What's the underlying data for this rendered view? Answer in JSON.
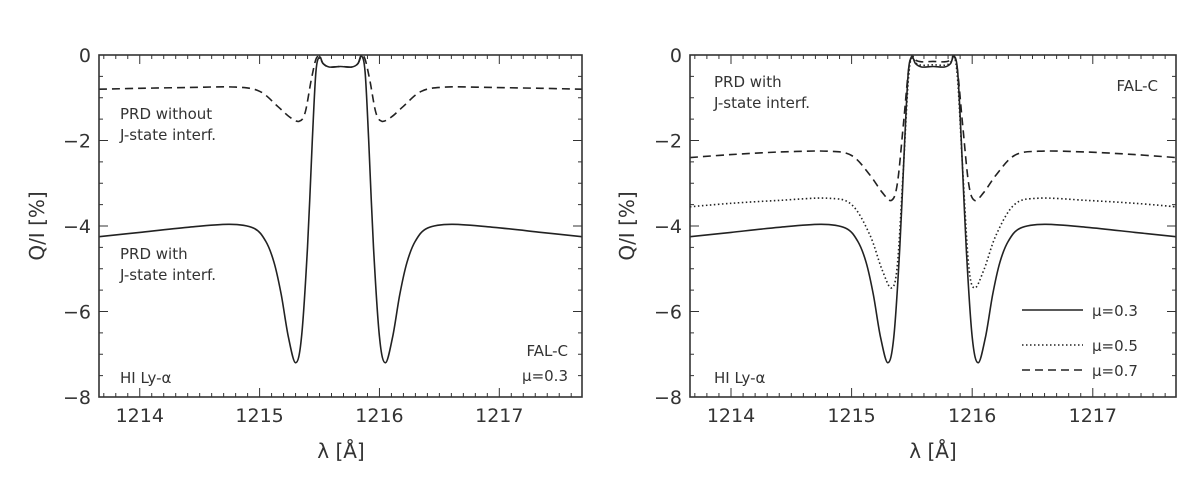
{
  "chart_data": [
    {
      "type": "line",
      "panel": "left",
      "xlabel": "λ [Å]",
      "ylabel": "Q/I [%]",
      "xlim": [
        1213.66,
        1217.69
      ],
      "ylim": [
        -8,
        0
      ],
      "xticks": [
        "1214",
        "1215",
        "1216",
        "1217"
      ],
      "xtick_values": [
        1214,
        1215,
        1216,
        1217
      ],
      "yticks": [
        "0",
        "−2",
        "−4",
        "−6",
        "−8"
      ],
      "ytick_values": [
        0,
        -2,
        -4,
        -6,
        -8
      ],
      "annotations": {
        "without_1": "PRD without",
        "without_2": "J-state interf.",
        "with_1": "PRD with",
        "with_2": "J-state interf.",
        "line": "HI Ly-α",
        "model": "FAL-C",
        "mu": "μ=0.3"
      },
      "series": [
        {
          "name": "PRD with J-state interf.",
          "style": "solid",
          "x": [
            1213.66,
            1214.0,
            1214.4,
            1214.75,
            1214.95,
            1215.05,
            1215.12,
            1215.18,
            1215.24,
            1215.3,
            1215.35,
            1215.4,
            1215.44,
            1215.47,
            1215.5,
            1215.53,
            1215.58,
            1215.675,
            1215.77,
            1215.82,
            1215.85,
            1215.88,
            1215.91,
            1215.95,
            1216.0,
            1216.05,
            1216.11,
            1216.17,
            1216.23,
            1216.3,
            1216.4,
            1216.6,
            1216.95,
            1217.35,
            1217.69
          ],
          "y": [
            -4.25,
            -4.15,
            -4.03,
            -3.96,
            -4.05,
            -4.35,
            -4.85,
            -5.6,
            -6.6,
            -7.2,
            -6.6,
            -4.5,
            -2.0,
            -0.4,
            -0.05,
            -0.2,
            -0.28,
            -0.27,
            -0.28,
            -0.2,
            -0.02,
            -0.4,
            -2.0,
            -4.5,
            -6.6,
            -7.2,
            -6.6,
            -5.6,
            -4.85,
            -4.35,
            -4.05,
            -3.96,
            -4.03,
            -4.15,
            -4.25
          ]
        },
        {
          "name": "PRD without J-state interf.",
          "style": "dashed",
          "x": [
            1213.66,
            1214.0,
            1214.4,
            1214.8,
            1215.0,
            1215.15,
            1215.25,
            1215.33,
            1215.38,
            1215.43,
            1215.47,
            1215.5,
            1215.53,
            1215.58,
            1215.675,
            1215.77,
            1215.82,
            1215.85,
            1215.88,
            1215.92,
            1215.97,
            1216.02,
            1216.1,
            1216.2,
            1216.35,
            1216.55,
            1216.95,
            1217.35,
            1217.69
          ],
          "y": [
            -0.8,
            -0.78,
            -0.76,
            -0.75,
            -0.85,
            -1.2,
            -1.45,
            -1.55,
            -1.35,
            -0.6,
            -0.1,
            -0.05,
            -0.2,
            -0.28,
            -0.27,
            -0.28,
            -0.2,
            -0.02,
            -0.1,
            -0.6,
            -1.35,
            -1.55,
            -1.45,
            -1.2,
            -0.85,
            -0.75,
            -0.76,
            -0.78,
            -0.8
          ]
        }
      ]
    },
    {
      "type": "line",
      "panel": "right",
      "xlabel": "λ [Å]",
      "ylabel": "Q/I [%]",
      "xlim": [
        1213.66,
        1217.69
      ],
      "ylim": [
        -8,
        0
      ],
      "xticks": [
        "1214",
        "1215",
        "1216",
        "1217"
      ],
      "xtick_values": [
        1214,
        1215,
        1216,
        1217
      ],
      "yticks": [
        "0",
        "−2",
        "−4",
        "−6",
        "−8"
      ],
      "ytick_values": [
        0,
        -2,
        -4,
        -6,
        -8
      ],
      "legend_position": "bottom-right",
      "annotations": {
        "with_1": "PRD with",
        "with_2": "J-state interf.",
        "line": "HI Ly-α",
        "model": "FAL-C"
      },
      "series": [
        {
          "name": "μ=0.3",
          "style": "solid",
          "x": [
            1213.66,
            1214.0,
            1214.4,
            1214.75,
            1214.95,
            1215.05,
            1215.12,
            1215.18,
            1215.24,
            1215.3,
            1215.35,
            1215.4,
            1215.44,
            1215.47,
            1215.5,
            1215.53,
            1215.58,
            1215.675,
            1215.77,
            1215.82,
            1215.85,
            1215.88,
            1215.91,
            1215.95,
            1216.0,
            1216.05,
            1216.11,
            1216.17,
            1216.23,
            1216.3,
            1216.4,
            1216.6,
            1216.95,
            1217.35,
            1217.69
          ],
          "y": [
            -4.25,
            -4.15,
            -4.03,
            -3.96,
            -4.05,
            -4.35,
            -4.85,
            -5.6,
            -6.6,
            -7.2,
            -6.6,
            -4.5,
            -2.0,
            -0.4,
            -0.05,
            -0.2,
            -0.28,
            -0.27,
            -0.28,
            -0.2,
            -0.02,
            -0.4,
            -2.0,
            -4.5,
            -6.6,
            -7.2,
            -6.6,
            -5.6,
            -4.85,
            -4.35,
            -4.05,
            -3.96,
            -4.03,
            -4.15,
            -4.25
          ]
        },
        {
          "name": "μ=0.5",
          "style": "dotted",
          "x": [
            1213.66,
            1214.0,
            1214.4,
            1214.8,
            1215.0,
            1215.15,
            1215.25,
            1215.33,
            1215.38,
            1215.43,
            1215.47,
            1215.5,
            1215.53,
            1215.58,
            1215.675,
            1215.77,
            1215.82,
            1215.85,
            1215.88,
            1215.92,
            1215.97,
            1216.02,
            1216.1,
            1216.2,
            1216.35,
            1216.55,
            1216.95,
            1217.35,
            1217.69
          ],
          "y": [
            -3.55,
            -3.47,
            -3.4,
            -3.35,
            -3.5,
            -4.2,
            -5.0,
            -5.45,
            -4.9,
            -2.6,
            -0.6,
            -0.03,
            -0.18,
            -0.24,
            -0.23,
            -0.24,
            -0.18,
            -0.03,
            -0.6,
            -2.6,
            -4.9,
            -5.45,
            -5.0,
            -4.2,
            -3.5,
            -3.35,
            -3.4,
            -3.47,
            -3.55
          ]
        },
        {
          "name": "μ=0.7",
          "style": "dashed",
          "x": [
            1213.66,
            1214.0,
            1214.4,
            1214.8,
            1215.0,
            1215.15,
            1215.25,
            1215.33,
            1215.38,
            1215.43,
            1215.47,
            1215.5,
            1215.53,
            1215.58,
            1215.675,
            1215.77,
            1215.82,
            1215.85,
            1215.88,
            1215.92,
            1215.97,
            1216.02,
            1216.1,
            1216.2,
            1216.35,
            1216.55,
            1216.95,
            1217.35,
            1217.69
          ],
          "y": [
            -2.4,
            -2.33,
            -2.27,
            -2.25,
            -2.35,
            -2.8,
            -3.2,
            -3.4,
            -3.0,
            -1.6,
            -0.4,
            -0.02,
            -0.12,
            -0.16,
            -0.15,
            -0.16,
            -0.12,
            -0.02,
            -0.4,
            -1.6,
            -3.0,
            -3.4,
            -3.2,
            -2.8,
            -2.35,
            -2.25,
            -2.27,
            -2.33,
            -2.4
          ]
        }
      ]
    }
  ]
}
